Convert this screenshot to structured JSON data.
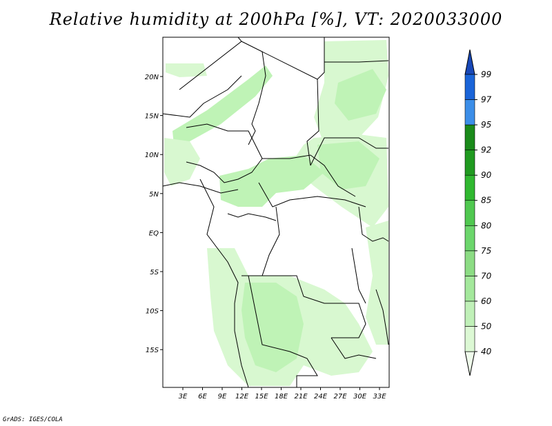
{
  "title": "Relative humidity at 200hPa [%], VT: 2020033000",
  "footer": "GrADS: IGES/COLA",
  "map": {
    "lon_labels": [
      "3E",
      "6E",
      "9E",
      "12E",
      "15E",
      "18E",
      "21E",
      "24E",
      "27E",
      "30E",
      "33E"
    ],
    "lat_labels": [
      "20N",
      "15N",
      "10N",
      "5N",
      "EQ",
      "5S",
      "10S",
      "15S"
    ],
    "fill_colors": {
      "c40": "#eefeea",
      "c50": "#d8f8d0",
      "c60": "#bff3b6",
      "c70": "#a0eb94",
      "c75": "#8ee57f"
    }
  },
  "colorbar": {
    "levels": [
      "40",
      "50",
      "60",
      "70",
      "75",
      "80",
      "85",
      "90",
      "92",
      "95",
      "97",
      "99"
    ],
    "colors": [
      "#f0fcec",
      "#dcf8d4",
      "#c0f0b8",
      "#a4e89c",
      "#8cdc84",
      "#6cd66c",
      "#50c850",
      "#30b830",
      "#209a20",
      "#1a8a1a",
      "#3c8ee8",
      "#1a64d8",
      "#1848b8"
    ]
  }
}
